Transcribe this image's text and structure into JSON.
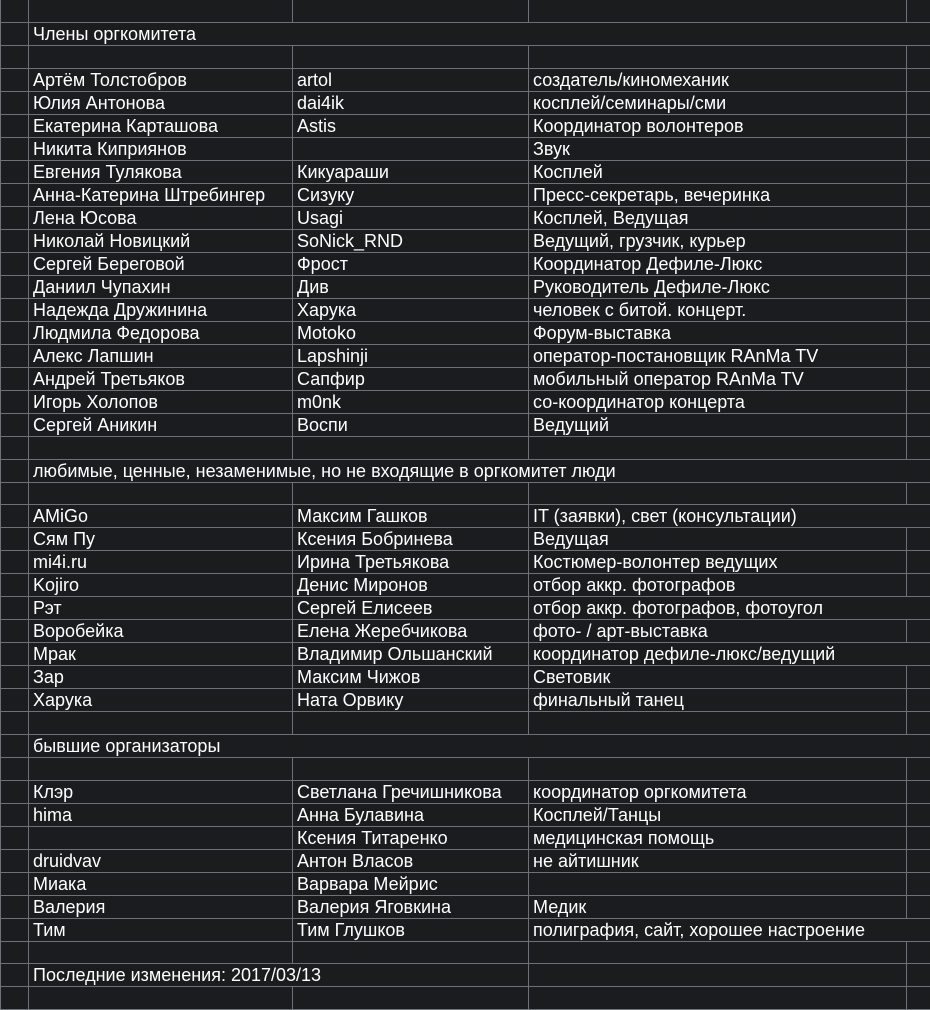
{
  "app": {
    "kind": "spreadsheet-grid",
    "language": "ru"
  },
  "colors": {
    "background": "#1b1c1e",
    "gridline": "#6e7176",
    "text": "#ffffff"
  },
  "rows": [
    {
      "type": "blank"
    },
    {
      "type": "section",
      "text": "Члены оргкомитета"
    },
    {
      "type": "blank"
    },
    {
      "type": "data",
      "cells": [
        "Артём Толстобров",
        "artol",
        "создатель/киномеханик"
      ],
      "merge_right": false
    },
    {
      "type": "data",
      "cells": [
        "Юлия Антонова",
        "dai4ik",
        "косплей/семинары/сми"
      ],
      "merge_right": false
    },
    {
      "type": "data",
      "cells": [
        "Екатерина Карташова",
        "Astis",
        "Координатор волонтеров"
      ],
      "merge_right": false
    },
    {
      "type": "data",
      "cells": [
        "Никита Киприянов",
        "",
        "Звук"
      ],
      "merge_right": false
    },
    {
      "type": "data",
      "cells": [
        "Евгения Тулякова",
        "Кикуараши",
        "Косплей"
      ],
      "merge_right": false
    },
    {
      "type": "data",
      "cells": [
        "Анна-Катерина Штребингер",
        "Сизуку",
        "Пресс-секретарь, вечеринка"
      ],
      "merge_right": false
    },
    {
      "type": "data",
      "cells": [
        "Лена Юсова",
        "Usagi",
        "Косплей, Ведущая"
      ],
      "merge_right": false
    },
    {
      "type": "data",
      "cells": [
        "Николай Новицкий",
        "SoNick_RND",
        "Ведущий, грузчик, курьер"
      ],
      "merge_right": false
    },
    {
      "type": "data",
      "cells": [
        "Сергей Береговой",
        "Фрост",
        "Координатор Дефиле-Люкс"
      ],
      "merge_right": false
    },
    {
      "type": "data",
      "cells": [
        "Даниил Чупахин",
        "Див",
        "Руководитель Дефиле-Люкс"
      ],
      "merge_right": false
    },
    {
      "type": "data",
      "cells": [
        "Надежда Дружинина",
        "Харука",
        "человек с битой. концерт."
      ],
      "merge_right": false
    },
    {
      "type": "data",
      "cells": [
        "Людмила Федорова",
        "Motoko",
        "Форум-выставка"
      ],
      "merge_right": false
    },
    {
      "type": "data",
      "cells": [
        "Алекс Лапшин",
        "Lapshinji",
        "оператор-постановщик RAnMa TV"
      ],
      "merge_right": false
    },
    {
      "type": "data",
      "cells": [
        "Андрей Третьяков",
        "Сапфир",
        "мобильный оператор RAnMa TV"
      ],
      "merge_right": false
    },
    {
      "type": "data",
      "cells": [
        "Игорь Холопов",
        "m0nk",
        "со-координатор концерта"
      ],
      "merge_right": false
    },
    {
      "type": "data",
      "cells": [
        "Сергей Аникин",
        "Воспи",
        "Ведущий"
      ],
      "merge_right": false
    },
    {
      "type": "blank"
    },
    {
      "type": "section",
      "text": "любимые, ценные, незаменимые, но не входящие в оргкомитет люди"
    },
    {
      "type": "blank"
    },
    {
      "type": "data",
      "cells": [
        "AMiGo",
        "Максим Гашков",
        "IT (заявки), свет (консультации)"
      ],
      "merge_right": true
    },
    {
      "type": "data",
      "cells": [
        "Сям Пу",
        "Ксения Бобринева",
        "Ведущая"
      ],
      "merge_right": false
    },
    {
      "type": "data",
      "cells": [
        "mi4i.ru",
        "Ирина Третьякова",
        "Костюмер-волонтер ведущих"
      ],
      "merge_right": false
    },
    {
      "type": "data",
      "cells": [
        "Kojiro",
        "Денис Миронов",
        "отбор аккр. фотографов"
      ],
      "merge_right": false
    },
    {
      "type": "data",
      "cells": [
        "Рэт",
        "Сергей Елисеев",
        "отбор аккр. фотографов, фотоугол"
      ],
      "merge_right": true
    },
    {
      "type": "data",
      "cells": [
        "Воробейка",
        "Елена Жеребчикова",
        "фото- / арт-выставка"
      ],
      "merge_right": false
    },
    {
      "type": "data",
      "cells": [
        "Мрак",
        "Владимир Ольшанский",
        "координатор дефиле-люкс/ведущий"
      ],
      "merge_right": true
    },
    {
      "type": "data",
      "cells": [
        "Зар",
        "Максим Чижов",
        "Световик"
      ],
      "merge_right": false
    },
    {
      "type": "data",
      "cells": [
        "Харука",
        "Ната Орвику",
        "финальный танец"
      ],
      "merge_right": false
    },
    {
      "type": "blank"
    },
    {
      "type": "section",
      "text": "бывшие организаторы"
    },
    {
      "type": "blank"
    },
    {
      "type": "data",
      "cells": [
        "Клэр",
        "Светлана Гречишникова",
        "координатор оргкомитета"
      ],
      "merge_right": false
    },
    {
      "type": "data",
      "cells": [
        "hima",
        "Анна Булавина",
        "Косплей/Танцы"
      ],
      "merge_right": false
    },
    {
      "type": "data",
      "cells": [
        "",
        "Ксения Титаренко",
        "медицинская помощь"
      ],
      "merge_right": false
    },
    {
      "type": "data",
      "cells": [
        "druidvav",
        "Антон Власов",
        "не айтишник"
      ],
      "merge_right": false
    },
    {
      "type": "data",
      "cells": [
        "Миака",
        "Варвара Мейрис",
        ""
      ],
      "merge_right": false
    },
    {
      "type": "data",
      "cells": [
        "Валерия",
        "Валерия Яговкина",
        "Медик"
      ],
      "merge_right": false
    },
    {
      "type": "data",
      "cells": [
        "Тим",
        "Тим Глушков",
        "полиграфия, сайт, хорошее настроение"
      ],
      "merge_right": true
    },
    {
      "type": "blank"
    },
    {
      "type": "footer-note",
      "text": "Последние изменения: 2017/03/13"
    },
    {
      "type": "blank"
    },
    {
      "type": "blank"
    }
  ]
}
